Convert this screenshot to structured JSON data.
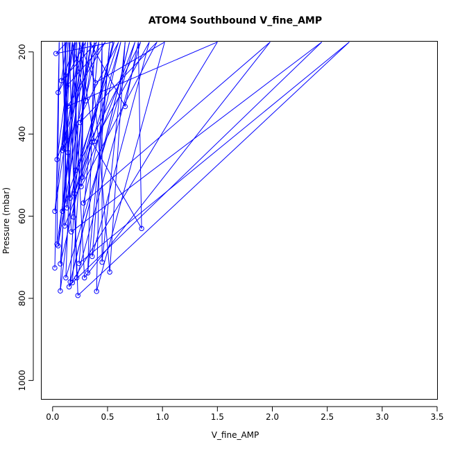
{
  "chart_data": {
    "type": "line",
    "title": "ATOM4 Southbound V_fine_AMP",
    "xlabel": "V_fine_AMP",
    "ylabel": "Pressure (mbar)",
    "xlim": [
      -0.1,
      3.5
    ],
    "ylim": [
      175,
      1045
    ],
    "y_reversed": true,
    "xticks": [
      0.0,
      0.5,
      1.0,
      1.5,
      2.0,
      2.5,
      3.0,
      3.5
    ],
    "xtick_labels": [
      "0.0",
      "0.5",
      "1.0",
      "1.5",
      "2.0",
      "2.5",
      "3.0",
      "3.5"
    ],
    "yticks": [
      200,
      400,
      600,
      800,
      1000
    ],
    "ytick_labels": [
      "200",
      "400",
      "600",
      "800",
      "1000"
    ],
    "grid": false,
    "series": [
      {
        "color": "#0000ff",
        "marker": "open-circle",
        "points": [
          [
            0.02,
            726
          ],
          [
            0.06,
            176
          ],
          [
            0.04,
            668
          ],
          [
            0.3,
            176
          ],
          [
            0.05,
            299
          ],
          [
            0.21,
            176
          ],
          [
            0.07,
            716
          ],
          [
            0.55,
            176
          ],
          [
            0.03,
            204
          ],
          [
            0.13,
            176
          ],
          [
            0.08,
            270
          ],
          [
            0.4,
            176
          ],
          [
            0.04,
            462
          ],
          [
            0.18,
            176
          ],
          [
            0.02,
            588
          ],
          [
            0.25,
            176
          ],
          [
            0.05,
            672
          ],
          [
            0.35,
            176
          ],
          [
            0.07,
            782
          ],
          [
            0.16,
            176
          ],
          [
            0.1,
            435
          ],
          [
            0.6,
            176
          ],
          [
            0.09,
            588
          ],
          [
            0.12,
            176
          ],
          [
            0.11,
            624
          ],
          [
            0.75,
            176
          ],
          [
            0.12,
            750
          ],
          [
            0.2,
            176
          ],
          [
            0.13,
            283
          ],
          [
            0.48,
            176
          ],
          [
            0.14,
            332
          ],
          [
            1.5,
            176
          ],
          [
            0.15,
            772
          ],
          [
            0.7,
            176
          ],
          [
            0.16,
            760
          ],
          [
            0.27,
            176
          ],
          [
            0.13,
            580
          ],
          [
            0.09,
            176
          ],
          [
            0.17,
            638
          ],
          [
            2.45,
            176
          ],
          [
            0.18,
            762
          ],
          [
            0.32,
            176
          ],
          [
            0.19,
            602
          ],
          [
            0.22,
            176
          ],
          [
            0.21,
            488
          ],
          [
            0.8,
            176
          ],
          [
            0.22,
            750
          ],
          [
            0.15,
            176
          ],
          [
            0.23,
            793
          ],
          [
            2.7,
            176
          ],
          [
            0.24,
            715
          ],
          [
            0.42,
            176
          ],
          [
            0.25,
            372
          ],
          [
            0.95,
            176
          ],
          [
            0.26,
            528
          ],
          [
            0.28,
            176
          ],
          [
            0.27,
            505
          ],
          [
            0.62,
            176
          ],
          [
            0.28,
            568
          ],
          [
            1.98,
            176
          ],
          [
            0.29,
            750
          ],
          [
            0.18,
            176
          ],
          [
            0.3,
            319
          ],
          [
            0.38,
            176
          ],
          [
            0.32,
            738
          ],
          [
            0.52,
            176
          ],
          [
            0.36,
            698
          ],
          [
            0.88,
            176
          ],
          [
            0.38,
            418
          ],
          [
            0.24,
            176
          ],
          [
            0.39,
            275
          ],
          [
            1.02,
            176
          ],
          [
            0.4,
            783
          ],
          [
            0.45,
            176
          ],
          [
            0.45,
            712
          ],
          [
            0.66,
            176
          ],
          [
            0.52,
            736
          ],
          [
            0.34,
            176
          ],
          [
            0.66,
            333
          ],
          [
            0.78,
            176
          ],
          [
            0.81,
            630
          ],
          [
            0.36,
            420
          ],
          [
            0.2,
            545
          ],
          [
            0.56,
            176
          ],
          [
            0.16,
            556
          ],
          [
            0.11,
            176
          ],
          [
            0.14,
            445
          ],
          [
            0.28,
            176
          ],
          [
            0.09,
            440
          ],
          [
            0.14,
            176
          ]
        ]
      }
    ]
  }
}
